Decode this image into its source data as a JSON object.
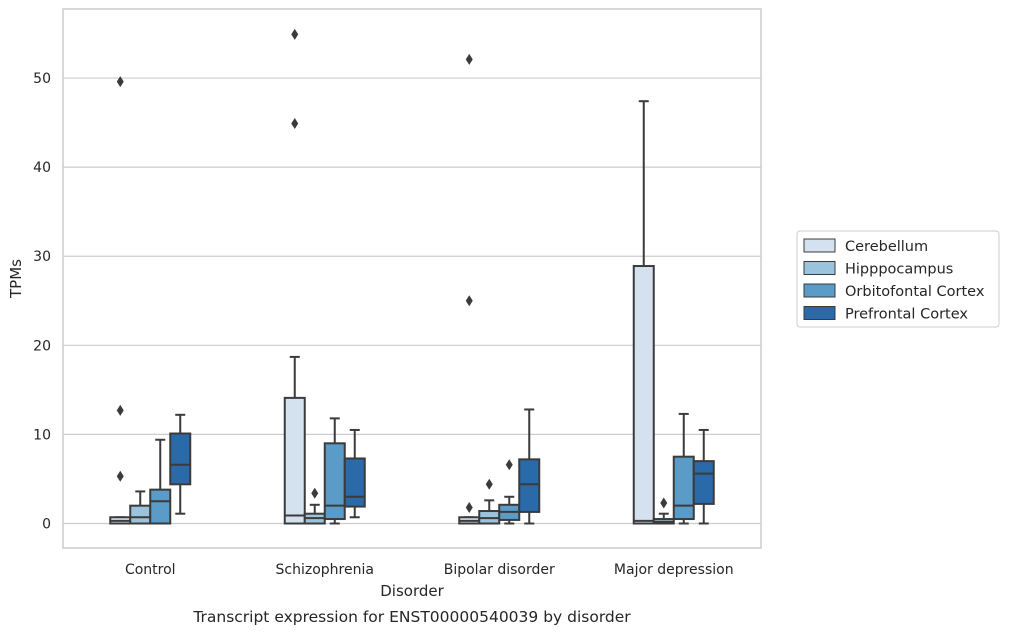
{
  "caption": "Transcript expression for ENST00000540039 by disorder",
  "chart_data": {
    "type": "box",
    "xlabel": "Disorder",
    "ylabel": "TPMs",
    "ylim": [
      -2.75,
      57.75
    ],
    "yticks": [
      0,
      10,
      20,
      30,
      40,
      50
    ],
    "grid": "horizontal",
    "legend_position": "right",
    "categories": [
      "Control",
      "Schizophrenia",
      "Bipolar disorder",
      "Major depression"
    ],
    "series": [
      {
        "name": "Cerebellum",
        "color": "#d4e2ef",
        "boxes": [
          {
            "whisker_low": 0,
            "q1": 0,
            "median": 0.3,
            "q3": 0.7,
            "whisker_high": 0.7,
            "outliers": [
              49.6,
              12.7,
              5.3
            ]
          },
          {
            "whisker_low": 0,
            "q1": 0,
            "median": 0.9,
            "q3": 14.1,
            "whisker_high": 18.7,
            "outliers": [
              54.9,
              44.9
            ]
          },
          {
            "whisker_low": 0,
            "q1": 0,
            "median": 0.3,
            "q3": 0.7,
            "whisker_high": 0.7,
            "outliers": [
              52.1,
              25.0,
              1.8
            ]
          },
          {
            "whisker_low": 0,
            "q1": 0,
            "median": 0.3,
            "q3": 28.9,
            "whisker_high": 47.4,
            "outliers": []
          }
        ]
      },
      {
        "name": "Hipppocampus",
        "color": "#9cc3dd",
        "boxes": [
          {
            "whisker_low": 0,
            "q1": 0,
            "median": 0.7,
            "q3": 2.0,
            "whisker_high": 3.6,
            "outliers": []
          },
          {
            "whisker_low": 0,
            "q1": 0,
            "median": 0.6,
            "q3": 1.1,
            "whisker_high": 2.1,
            "outliers": [
              3.4
            ]
          },
          {
            "whisker_low": 0,
            "q1": 0,
            "median": 0.6,
            "q3": 1.4,
            "whisker_high": 2.6,
            "outliers": [
              4.4
            ]
          },
          {
            "whisker_low": 0,
            "q1": 0,
            "median": 0.2,
            "q3": 0.5,
            "whisker_high": 1.1,
            "outliers": [
              2.3
            ]
          }
        ]
      },
      {
        "name": "Orbitofontal Cortex",
        "color": "#5b9bc8",
        "boxes": [
          {
            "whisker_low": 0,
            "q1": 0,
            "median": 2.5,
            "q3": 3.8,
            "whisker_high": 9.4,
            "outliers": []
          },
          {
            "whisker_low": 0,
            "q1": 0.5,
            "median": 2.0,
            "q3": 9.0,
            "whisker_high": 11.8,
            "outliers": []
          },
          {
            "whisker_low": 0,
            "q1": 0.4,
            "median": 1.3,
            "q3": 2.1,
            "whisker_high": 3.0,
            "outliers": [
              6.6
            ]
          },
          {
            "whisker_low": 0,
            "q1": 0.5,
            "median": 2.0,
            "q3": 7.5,
            "whisker_high": 12.3,
            "outliers": []
          }
        ]
      },
      {
        "name": "Prefrontal Cortex",
        "color": "#2a6aa8",
        "boxes": [
          {
            "whisker_low": 1.1,
            "q1": 4.4,
            "median": 6.6,
            "q3": 10.1,
            "whisker_high": 12.2,
            "outliers": []
          },
          {
            "whisker_low": 0.7,
            "q1": 1.9,
            "median": 3.0,
            "q3": 7.3,
            "whisker_high": 10.5,
            "outliers": []
          },
          {
            "whisker_low": 0,
            "q1": 1.3,
            "median": 4.4,
            "q3": 7.2,
            "whisker_high": 12.8,
            "outliers": []
          },
          {
            "whisker_low": 0,
            "q1": 2.2,
            "median": 5.6,
            "q3": 7.0,
            "whisker_high": 10.5,
            "outliers": []
          }
        ]
      }
    ]
  }
}
